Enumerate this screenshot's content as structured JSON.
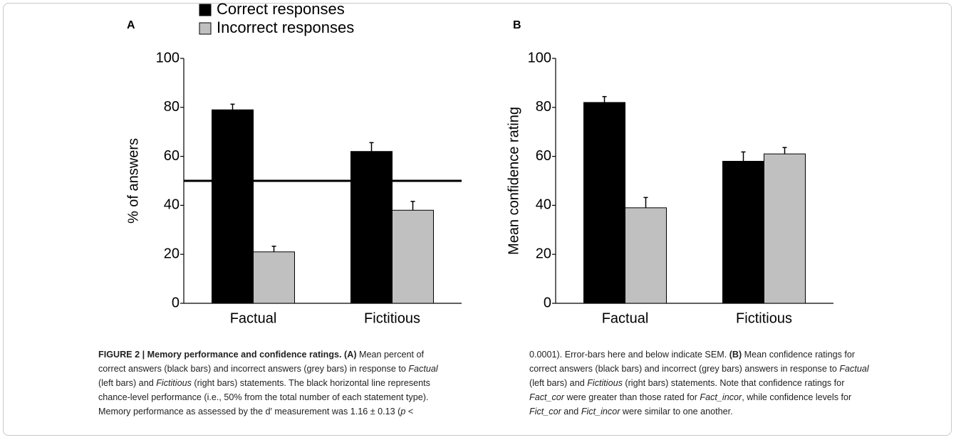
{
  "chart_data": [
    {
      "type": "bar",
      "label": "A",
      "ylabel": "% of answers",
      "categories": [
        "Factual",
        "Fictitious"
      ],
      "series": [
        {
          "name": "Correct responses",
          "color": "#000000",
          "values": [
            79,
            62
          ],
          "errors": [
            2.3,
            3.6
          ]
        },
        {
          "name": "Incorrect responses",
          "color": "#c0c0c0",
          "values": [
            21,
            38
          ],
          "errors": [
            2.3,
            3.6
          ]
        }
      ],
      "reference_line": 50,
      "ylim": [
        0,
        100
      ],
      "yticks": [
        0,
        20,
        40,
        60,
        80,
        100
      ],
      "legend": "top-left"
    },
    {
      "type": "bar",
      "label": "B",
      "ylabel": "Mean confidence rating",
      "categories": [
        "Factual",
        "Fictitious"
      ],
      "series": [
        {
          "color": "#000000",
          "values": [
            82,
            58
          ],
          "errors": [
            2.4,
            3.8
          ]
        },
        {
          "color": "#c0c0c0",
          "values": [
            39,
            61
          ],
          "errors": [
            4.2,
            2.6
          ]
        }
      ],
      "ylim": [
        0,
        100
      ],
      "yticks": [
        0,
        20,
        40,
        60,
        80,
        100
      ]
    }
  ],
  "caption": {
    "runs": [
      "FIGURE 2 | Memory performance and confidence ratings.",
      " (A)",
      " Mean percent of correct answers (black bars) and incorrect answers (grey bars) in response to ",
      "Factual",
      " (left bars) and ",
      "Fictitious",
      " (right bars) statements. The black horizontal line represents chance-level performance (i.e., 50% from the total number of each statement type). Memory performance as assessed by the d′ measurement was 1.16 ± 0.13 (",
      "p",
      " < 0.0001). Error-bars here and below indicate SEM. ",
      "(B)",
      " Mean confidence ratings for correct answers (black bars) and incorrect (grey bars) answers in response to ",
      "Factual",
      " (left bars) and ",
      "Fictitious",
      " (right bars) statements. Note that confidence ratings for ",
      "Fact_cor",
      " were greater than those rated for ",
      "Fact_incor",
      ", while confidence levels for ",
      "Fict_cor",
      " and ",
      "Fict_incor",
      " were similar to one another."
    ]
  }
}
